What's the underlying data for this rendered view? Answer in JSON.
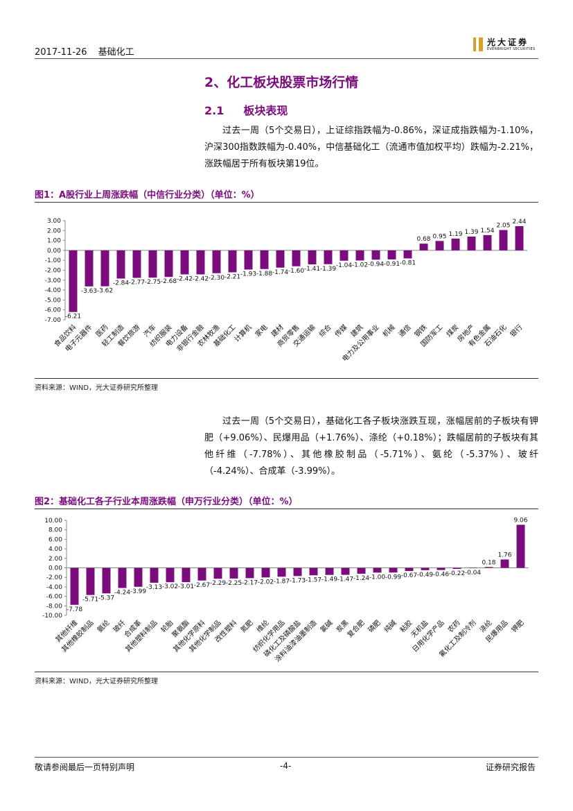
{
  "header": {
    "date": "2017-11-26",
    "sector": "基础化工",
    "logo_cn": "光大证券",
    "logo_en": "EVERBRIGHT SECURITIES"
  },
  "section": {
    "title": "2、化工板块股票市场行情",
    "sub_num": "2.1",
    "sub_title": "板块表现"
  },
  "paragraph1": "过去一周（5个交易日），上证综指跌幅为-0.86%，深证成指跌幅为-1.10%，沪深300指数跌幅为-0.40%，中信基础化工（流通市值加权平均）跌幅为-2.21%，涨跌幅居于所有板块第19位。",
  "figure1": {
    "title": "图1：A股行业上周涨跌幅（中信行业分类）（单位：%）",
    "source": "资料来源：WIND，光大证券研究所整理"
  },
  "paragraph2": "过去一周（5个交易日），基础化工各子板块涨跌互现，涨幅居前的子板块有钾肥（+9.06%）、民爆用品（+1.76%）、涤纶（+0.18%）；跌幅居前的子板块有其他纤维（-7.78%）、其他橡胶制品（-5.71%）、氨纶（-5.37%）、玻纤（-4.24%）、合成革（-3.99%）。",
  "figure2": {
    "title": "图2：基础化工各子行业本周涨跌幅（申万行业分类）（单位：%）",
    "source": "资料来源：WIND，光大证券研究所整理"
  },
  "footer": {
    "left": "敬请参阅最后一页特别声明",
    "page": "-4-",
    "right": "证券研究报告"
  },
  "colors": {
    "accent": "#7b0c7e",
    "bar": "#7b0c7e"
  },
  "chart_data": [
    {
      "type": "bar",
      "title": "A股行业上周涨跌幅（中信行业分类）",
      "ylim": [
        -7,
        3
      ],
      "yticks": [
        "3.00",
        "2.00",
        "1.00",
        "0.00",
        "-1.00",
        "-2.00",
        "-3.00",
        "-4.00",
        "-5.00",
        "-6.00",
        "-7.00"
      ],
      "categories": [
        "食品饮料",
        "电子元器件",
        "医药",
        "轻工制造",
        "餐饮旅游",
        "汽车",
        "纺织服装",
        "电力设备",
        "非银行金融",
        "农林牧渔",
        "基础化工",
        "计算机",
        "家电",
        "建材",
        "商贸零售",
        "交通运输",
        "综合",
        "传媒",
        "建筑",
        "电力及公用事业",
        "机械",
        "通信",
        "钢铁",
        "国防军工",
        "煤炭",
        "房地产",
        "有色金属",
        "石油石化",
        "银行"
      ],
      "values": [
        -6.21,
        -3.63,
        -3.62,
        -2.84,
        -2.77,
        -2.75,
        -2.68,
        -2.42,
        -2.42,
        -2.3,
        -2.21,
        -1.93,
        -1.88,
        -1.74,
        -1.6,
        -1.41,
        -1.39,
        -1.04,
        -1.02,
        -0.94,
        -0.91,
        -0.81,
        0.68,
        0.95,
        1.19,
        1.39,
        1.54,
        2.05,
        2.44
      ]
    },
    {
      "type": "bar",
      "title": "基础化工各子行业本周涨跌幅（申万行业分类）",
      "ylim": [
        -10,
        10
      ],
      "yticks": [
        "10.00",
        "8.00",
        "6.00",
        "4.00",
        "2.00",
        "0.00",
        "-2.00",
        "-4.00",
        "-6.00",
        "-8.00",
        "-10.00"
      ],
      "categories": [
        "其他纤维",
        "其他橡胶制品",
        "氨纶",
        "玻纤",
        "合成革",
        "其他塑料制品",
        "轮胎",
        "聚氨酯",
        "其他化学原料",
        "其他化学制品",
        "改性塑料",
        "氮肥",
        "维纶",
        "纺织化学用品",
        "磷化工及磷酸盐",
        "涂料油漆油墨制造",
        "氯碱",
        "炭黑",
        "复合肥",
        "磷肥",
        "纯碱",
        "粘胶",
        "无机盐",
        "日用化学产品",
        "农药",
        "氟化工及制冷剂",
        "涤纶",
        "民爆用品",
        "钾肥"
      ],
      "values": [
        -7.78,
        -5.71,
        -5.37,
        -4.24,
        -3.99,
        -3.13,
        -3.02,
        -3.01,
        -2.67,
        -2.29,
        -2.25,
        -2.17,
        -2.02,
        -1.87,
        -1.73,
        -1.57,
        -1.49,
        -1.47,
        -1.24,
        -1.0,
        -0.99,
        -0.67,
        -0.49,
        -0.46,
        -0.22,
        -0.04,
        0.18,
        1.76,
        9.06
      ]
    }
  ]
}
